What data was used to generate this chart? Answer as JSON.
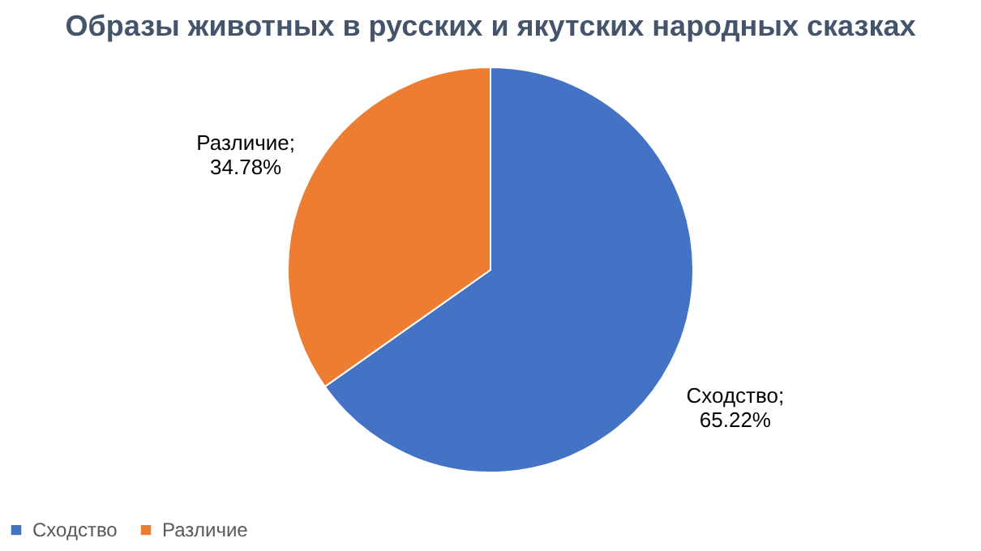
{
  "chart_data": {
    "type": "pie",
    "title": "Образы животных в русских и якутских народных сказках",
    "categories": [
      "Сходство",
      "Различие"
    ],
    "values": [
      65.22,
      34.78
    ],
    "colors": [
      "#4472c4",
      "#ed7d31"
    ],
    "value_labels": [
      "Сходство; 65.22%",
      "Различие; 34.78%"
    ],
    "legend": "bottom"
  }
}
